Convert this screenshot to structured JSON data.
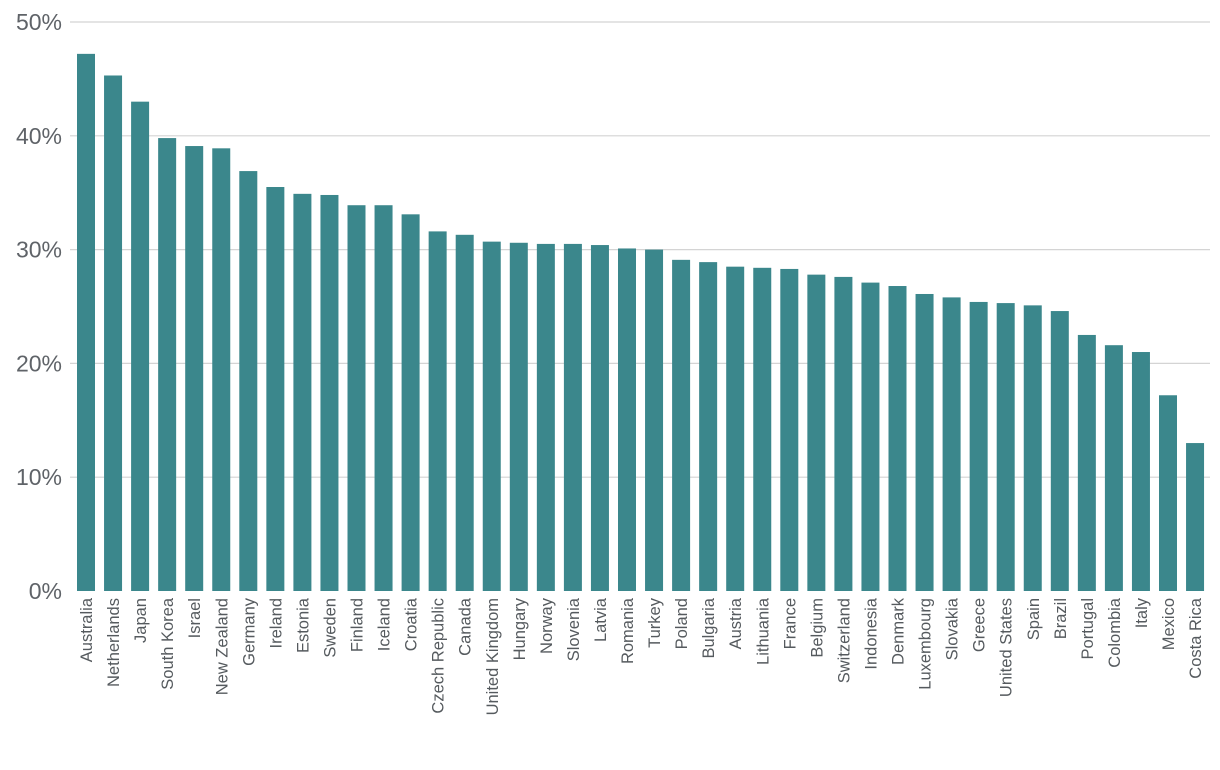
{
  "chart_data": {
    "type": "bar",
    "title": "",
    "xlabel": "",
    "ylabel": "",
    "ylim": [
      0,
      50
    ],
    "yticks": [
      0,
      10,
      20,
      30,
      40,
      50
    ],
    "ytick_labels": [
      "0%",
      "10%",
      "20%",
      "30%",
      "40%",
      "50%"
    ],
    "y_unit": "%",
    "grid": "horizontal",
    "legend": "none",
    "colors": {
      "bar": "#3b878c",
      "grid": "#d4d4d4",
      "tick_text": "#5f6368"
    },
    "categories": [
      "Australia",
      "Netherlands",
      "Japan",
      "South Korea",
      "Israel",
      "New Zealand",
      "Germany",
      "Ireland",
      "Estonia",
      "Sweden",
      "Finland",
      "Iceland",
      "Croatia",
      "Czech Republic",
      "Canada",
      "United Kingdom",
      "Hungary",
      "Norway",
      "Slovenia",
      "Latvia",
      "Romania",
      "Turkey",
      "Poland",
      "Bulgaria",
      "Austria",
      "Lithuania",
      "France",
      "Belgium",
      "Switzerland",
      "Indonesia",
      "Denmark",
      "Luxembourg",
      "Slovakia",
      "Greece",
      "United States",
      "Spain",
      "Brazil",
      "Portugal",
      "Colombia",
      "Italy",
      "Mexico",
      "Costa Rica"
    ],
    "values": [
      47.2,
      45.3,
      43.0,
      39.8,
      39.1,
      38.9,
      36.9,
      35.5,
      34.9,
      34.8,
      33.9,
      33.9,
      33.1,
      31.6,
      31.3,
      30.7,
      30.6,
      30.5,
      30.5,
      30.4,
      30.1,
      30.0,
      29.1,
      28.9,
      28.5,
      28.4,
      28.3,
      27.8,
      27.6,
      27.1,
      26.8,
      26.1,
      25.8,
      25.4,
      25.3,
      25.1,
      24.6,
      22.5,
      21.6,
      21.0,
      17.2,
      13.0
    ]
  }
}
